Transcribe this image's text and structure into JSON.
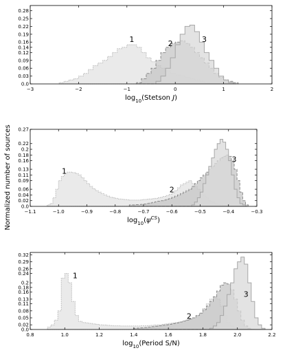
{
  "ylabel": "Normalized number of sources",
  "chart_data": [
    {
      "type": "histogram",
      "xlabel": "log10(Stetson J)",
      "xlim": [
        -3,
        2
      ],
      "ylim": [
        0,
        0.3
      ],
      "xticks": [
        -3,
        -2,
        -1,
        0,
        1,
        2
      ],
      "xticklabels": [
        "−3",
        "−2",
        "−1",
        "0",
        "1",
        "2"
      ],
      "yticks": [
        0,
        0.03,
        0.06,
        0.09,
        0.12,
        0.14,
        0.16,
        0.19,
        0.22,
        0.25,
        0.28
      ],
      "yticklabels": [
        "0.0",
        "0.03",
        "0.06",
        "0.09",
        "0.12",
        "0.14",
        "0.16",
        "0.19",
        "0.22",
        "0.25",
        "0.28"
      ],
      "binwidth": 0.1,
      "series": [
        {
          "name": "1",
          "x0": -2.4,
          "values": [
            0.005,
            0.01,
            0.015,
            0.02,
            0.03,
            0.04,
            0.055,
            0.07,
            0.08,
            0.09,
            0.105,
            0.12,
            0.135,
            0.14,
            0.15,
            0.15,
            0.14,
            0.12,
            0.1,
            0.085,
            0.07,
            0.06,
            0.05,
            0.04,
            0.035,
            0.03,
            0.025,
            0.02,
            0.015,
            0.01,
            0.005
          ]
        },
        {
          "name": "2",
          "x0": -0.8,
          "values": [
            0.005,
            0.02,
            0.04,
            0.06,
            0.09,
            0.12,
            0.14,
            0.155,
            0.16,
            0.165,
            0.155,
            0.14,
            0.12,
            0.1,
            0.08,
            0.06,
            0.04,
            0.025,
            0.015,
            0.01,
            0.005
          ]
        },
        {
          "name": "3",
          "x0": -0.4,
          "values": [
            0.01,
            0.03,
            0.06,
            0.1,
            0.15,
            0.19,
            0.22,
            0.225,
            0.2,
            0.16,
            0.12,
            0.09,
            0.06,
            0.03,
            0.015,
            0.005
          ]
        }
      ],
      "labels": [
        {
          "text": "1",
          "x": -0.9,
          "y": 0.16
        },
        {
          "text": "2",
          "x": -0.1,
          "y": 0.145
        },
        {
          "text": "3",
          "x": 0.6,
          "y": 0.16
        }
      ]
    },
    {
      "type": "histogram",
      "xlabel": "log10(ψ^CS)",
      "xlim": [
        -1.1,
        -0.3
      ],
      "ylim": [
        0,
        0.27
      ],
      "xticks": [
        -1.1,
        -1.0,
        -0.9,
        -0.8,
        -0.7,
        -0.6,
        -0.5,
        -0.4,
        -0.3
      ],
      "xticklabels": [
        "−1.1",
        "−1.0",
        "−0.9",
        "−0.8",
        "−0.7",
        "−0.6",
        "−0.5",
        "−0.4",
        "−0.3"
      ],
      "yticks": [
        0,
        0.02,
        0.04,
        0.06,
        0.09,
        0.11,
        0.13,
        0.16,
        0.18,
        0.2,
        0.22,
        0.27
      ],
      "yticklabels": [
        "0.0",
        "0.02",
        "0.04",
        "0.06",
        "0.09",
        "0.11",
        "0.13",
        "0.16",
        "0.18",
        "0.2",
        "0.22",
        "0.27"
      ],
      "binwidth": 0.01,
      "series": [
        {
          "name": "1",
          "x0": -1.04,
          "values": [
            0.005,
            0.01,
            0.03,
            0.06,
            0.09,
            0.105,
            0.115,
            0.12,
            0.12,
            0.118,
            0.115,
            0.11,
            0.1,
            0.09,
            0.08,
            0.07,
            0.062,
            0.055,
            0.05,
            0.045,
            0.04,
            0.036,
            0.032,
            0.03,
            0.028,
            0.026,
            0.025,
            0.024,
            0.023,
            0.022,
            0.022,
            0.022,
            0.022,
            0.023,
            0.024,
            0.025,
            0.026,
            0.027,
            0.028,
            0.03,
            0.032,
            0.035,
            0.038,
            0.042,
            0.048,
            0.055,
            0.065,
            0.075,
            0.08,
            0.085,
            0.09,
            0.08,
            0.07,
            0.06,
            0.05,
            0.04,
            0.03,
            0.02,
            0.015,
            0.01,
            0.006,
            0.005,
            0.004,
            0.003,
            0.002,
            0.001,
            0.001,
            0.001
          ]
        },
        {
          "name": "2",
          "x0": -0.75,
          "values": [
            0.005,
            0.005,
            0.006,
            0.006,
            0.007,
            0.008,
            0.01,
            0.012,
            0.014,
            0.016,
            0.018,
            0.02,
            0.022,
            0.025,
            0.028,
            0.032,
            0.036,
            0.04,
            0.045,
            0.05,
            0.055,
            0.06,
            0.07,
            0.08,
            0.09,
            0.1,
            0.11,
            0.12,
            0.13,
            0.14,
            0.15,
            0.16,
            0.17,
            0.175,
            0.18,
            0.175,
            0.16,
            0.13,
            0.09,
            0.05,
            0.02,
            0.005
          ]
        },
        {
          "name": "3",
          "x0": -0.53,
          "values": [
            0.005,
            0.015,
            0.03,
            0.05,
            0.08,
            0.11,
            0.14,
            0.17,
            0.2,
            0.22,
            0.235,
            0.225,
            0.2,
            0.16,
            0.11,
            0.06,
            0.03,
            0.01,
            0.005
          ]
        }
      ],
      "labels": [
        {
          "text": "1",
          "x": -0.98,
          "y": 0.115
        },
        {
          "text": "2",
          "x": -0.6,
          "y": 0.05
        },
        {
          "text": "3",
          "x": -0.38,
          "y": 0.155
        }
      ]
    },
    {
      "type": "histogram",
      "xlabel": "log10(Period S/N)",
      "xlim": [
        0.8,
        2.2
      ],
      "ylim": [
        0,
        0.33
      ],
      "xticks": [
        0.8,
        1.0,
        1.2,
        1.4,
        1.6,
        1.8,
        2.0,
        2.2
      ],
      "xticklabels": [
        "0.8",
        "1.0",
        "1.2",
        "1.4",
        "1.6",
        "1.8",
        "2.0",
        "2.2"
      ],
      "yticks": [
        0,
        0.02,
        0.05,
        0.08,
        0.11,
        0.13,
        0.16,
        0.18,
        0.2,
        0.24,
        0.26,
        0.29,
        0.32
      ],
      "yticklabels": [
        "0.0",
        "0.02",
        "0.05",
        "0.08",
        "0.11",
        "0.13",
        "0.16",
        "0.18",
        "0.2",
        "0.24",
        "0.26",
        "0.29",
        "0.32"
      ],
      "binwidth": 0.02,
      "series": [
        {
          "name": "1",
          "x0": 0.9,
          "values": [
            0.01,
            0.02,
            0.04,
            0.08,
            0.22,
            0.24,
            0.2,
            0.12,
            0.06,
            0.035,
            0.03,
            0.028,
            0.026,
            0.024,
            0.022,
            0.02,
            0.019,
            0.018,
            0.017,
            0.016,
            0.016,
            0.015,
            0.015,
            0.015,
            0.015,
            0.015,
            0.015,
            0.016,
            0.016,
            0.017,
            0.018,
            0.019,
            0.02,
            0.022,
            0.024,
            0.026,
            0.028,
            0.03,
            0.032,
            0.035,
            0.04,
            0.045,
            0.05,
            0.06,
            0.07,
            0.09,
            0.11,
            0.13,
            0.14,
            0.13,
            0.1,
            0.06,
            0.03,
            0.015,
            0.008,
            0.005,
            0.003,
            0.002,
            0.001,
            0.001
          ]
        },
        {
          "name": "2",
          "x0": 1.4,
          "values": [
            0.005,
            0.006,
            0.007,
            0.008,
            0.01,
            0.012,
            0.014,
            0.016,
            0.018,
            0.02,
            0.022,
            0.025,
            0.028,
            0.032,
            0.036,
            0.04,
            0.045,
            0.05,
            0.06,
            0.07,
            0.085,
            0.1,
            0.12,
            0.14,
            0.165,
            0.19,
            0.2,
            0.195,
            0.17,
            0.13,
            0.08,
            0.04,
            0.015,
            0.005
          ]
        },
        {
          "name": "3",
          "x0": 1.84,
          "values": [
            0.005,
            0.015,
            0.03,
            0.06,
            0.1,
            0.15,
            0.2,
            0.26,
            0.29,
            0.31,
            0.28,
            0.2,
            0.12,
            0.05,
            0.02,
            0.005
          ]
        }
      ],
      "labels": [
        {
          "text": "1",
          "x": 1.06,
          "y": 0.22
        },
        {
          "text": "2",
          "x": 1.72,
          "y": 0.045
        },
        {
          "text": "3",
          "x": 2.05,
          "y": 0.14
        }
      ]
    }
  ]
}
